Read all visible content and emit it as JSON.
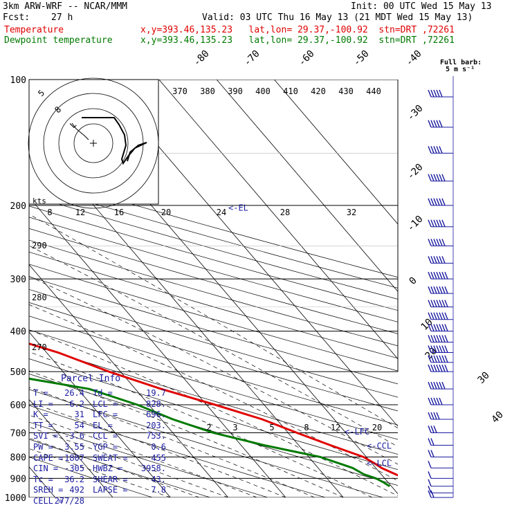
{
  "header": {
    "line1_left": "3km ARW-WRF -- NCAR/MMM",
    "line1_right": "Init: 00 UTC Wed 15 May 13",
    "fcst_label": "Fcst:",
    "fcst_value": "27 h",
    "valid": "Valid: 03 UTC Thu 16 May 13 (21 MDT Wed 15 May 13)",
    "temp_label": "Temperature",
    "temp_info": "x,y=393.46,135.23   lat,lon= 29.37,-100.92  stn=DRT ,72261",
    "dew_label": "Dewpoint temperature",
    "dew_info": "x,y=393.46,135.23   lat,lon= 29.37,-100.92  stn=DRT ,72261"
  },
  "colors": {
    "temperature": "#e00000",
    "dewpoint": "#007a00",
    "parcel_text": "#1a1aa0",
    "axes": "#000000"
  },
  "barb_legend": {
    "title": "Full barb:",
    "units": "5 m s⁻¹"
  },
  "chart_data": {
    "type": "line",
    "title": "",
    "ylabel": "",
    "y_scale": "log",
    "ylim": [
      1000,
      100
    ],
    "pressure_ticks": [
      100,
      200,
      300,
      400,
      500,
      600,
      700,
      800,
      900,
      1000
    ],
    "temperature_labels": [
      -80,
      -70,
      -60,
      -50,
      -40,
      -30,
      -20,
      -10,
      0,
      10,
      20,
      30,
      40
    ],
    "theta_labels": [
      370,
      380,
      390,
      400,
      410,
      420,
      430,
      440
    ],
    "theta_e_labels": [
      270,
      280,
      290
    ],
    "mixing_ratio_labels": [
      2,
      3,
      5,
      8,
      12,
      20
    ],
    "series": [
      {
        "name": "Temperature",
        "points": [
          [
            100,
            -69
          ],
          [
            110,
            -70
          ],
          [
            120,
            -70.5
          ],
          [
            150,
            -71.5
          ],
          [
            200,
            -68
          ],
          [
            250,
            -62
          ],
          [
            300,
            -52
          ],
          [
            350,
            -39
          ],
          [
            400,
            -27
          ],
          [
            450,
            -18
          ],
          [
            500,
            -12
          ],
          [
            550,
            -5.5
          ],
          [
            600,
            1.5
          ],
          [
            650,
            7.5
          ],
          [
            700,
            11.5
          ],
          [
            750,
            15.5
          ],
          [
            800,
            19.5
          ],
          [
            830,
            20.5
          ],
          [
            850,
            21
          ],
          [
            880,
            22.5
          ],
          [
            900,
            23.5
          ],
          [
            920,
            25.5
          ],
          [
            940,
            26.4
          ]
        ]
      },
      {
        "name": "Dewpoint temperature",
        "points": [
          [
            100,
            -76
          ],
          [
            150,
            -79
          ],
          [
            200,
            -81
          ],
          [
            250,
            -80
          ],
          [
            300,
            -78
          ],
          [
            350,
            -72
          ],
          [
            400,
            -50
          ],
          [
            450,
            -40
          ],
          [
            500,
            -33
          ],
          [
            550,
            -18
          ],
          [
            600,
            -12
          ],
          [
            650,
            -8
          ],
          [
            700,
            -3
          ],
          [
            750,
            4
          ],
          [
            800,
            12
          ],
          [
            850,
            16
          ],
          [
            880,
            17
          ],
          [
            900,
            18.5
          ],
          [
            920,
            19.2
          ],
          [
            940,
            19.7
          ]
        ]
      }
    ],
    "annotations": [
      {
        "label": "EL",
        "pressure": 203
      },
      {
        "label": "LFC",
        "pressure": 696
      },
      {
        "label": "CCL",
        "pressure": 753
      },
      {
        "label": "LCL",
        "pressure": 828
      }
    ],
    "wind_profile": {
      "units": "m/s",
      "levels": [
        [
          110,
          25
        ],
        [
          130,
          28
        ],
        [
          150,
          28
        ],
        [
          175,
          30
        ],
        [
          200,
          30
        ],
        [
          225,
          30
        ],
        [
          250,
          32
        ],
        [
          275,
          33
        ],
        [
          300,
          35
        ],
        [
          325,
          35
        ],
        [
          350,
          35
        ],
        [
          375,
          35
        ],
        [
          400,
          35
        ],
        [
          425,
          35
        ],
        [
          450,
          35
        ],
        [
          475,
          35
        ],
        [
          500,
          35
        ],
        [
          550,
          30
        ],
        [
          600,
          25
        ],
        [
          650,
          20
        ],
        [
          700,
          17
        ],
        [
          750,
          13
        ],
        [
          800,
          10
        ],
        [
          850,
          8
        ],
        [
          900,
          6
        ],
        [
          940,
          5
        ],
        [
          975,
          8
        ],
        [
          1000,
          12
        ]
      ]
    },
    "hodograph": {
      "ring_labels": [
        "5",
        "8",
        "L"
      ],
      "speed_label": "kts",
      "axis_labels": [
        "8",
        "12",
        "16",
        "20",
        "24",
        "28",
        "32"
      ]
    }
  },
  "parcel": {
    "title": "Parcel Info",
    "rows": [
      {
        "k1": "T",
        "v1": "26.4",
        "k2": "Td",
        "v2": "19.7"
      },
      {
        "k1": "LI",
        "v1": "-6.2",
        "k2": "LCL",
        "v2": "828."
      },
      {
        "k1": "K",
        "v1": "31",
        "k2": "LFC",
        "v2": "696."
      },
      {
        "k1": "TT",
        "v1": "54",
        "k2": "EL",
        "v2": "203."
      },
      {
        "k1": "SVI",
        "v1": "-3.6",
        "k2": "CCL",
        "v2": "753."
      },
      {
        "k1": "PW",
        "v1": "3.55",
        "k2": "YGP",
        "v2": "0.6"
      },
      {
        "k1": "CAPE",
        "v1": "1807",
        "k2": "SWEAT",
        "v2": "455"
      },
      {
        "k1": "CIN",
        "v1": "-305",
        "k2": "HWBZ",
        "v2": "3958."
      },
      {
        "k1": "Tc",
        "v1": "36.2",
        "k2": "SHEAR",
        "v2": "43."
      },
      {
        "k1": "SREH",
        "v1": "492",
        "k2": "LAPSE",
        "v2": "7.8"
      },
      {
        "k1": "CELL",
        "v1": "277/28",
        "k2": "",
        "v2": ""
      }
    ]
  }
}
